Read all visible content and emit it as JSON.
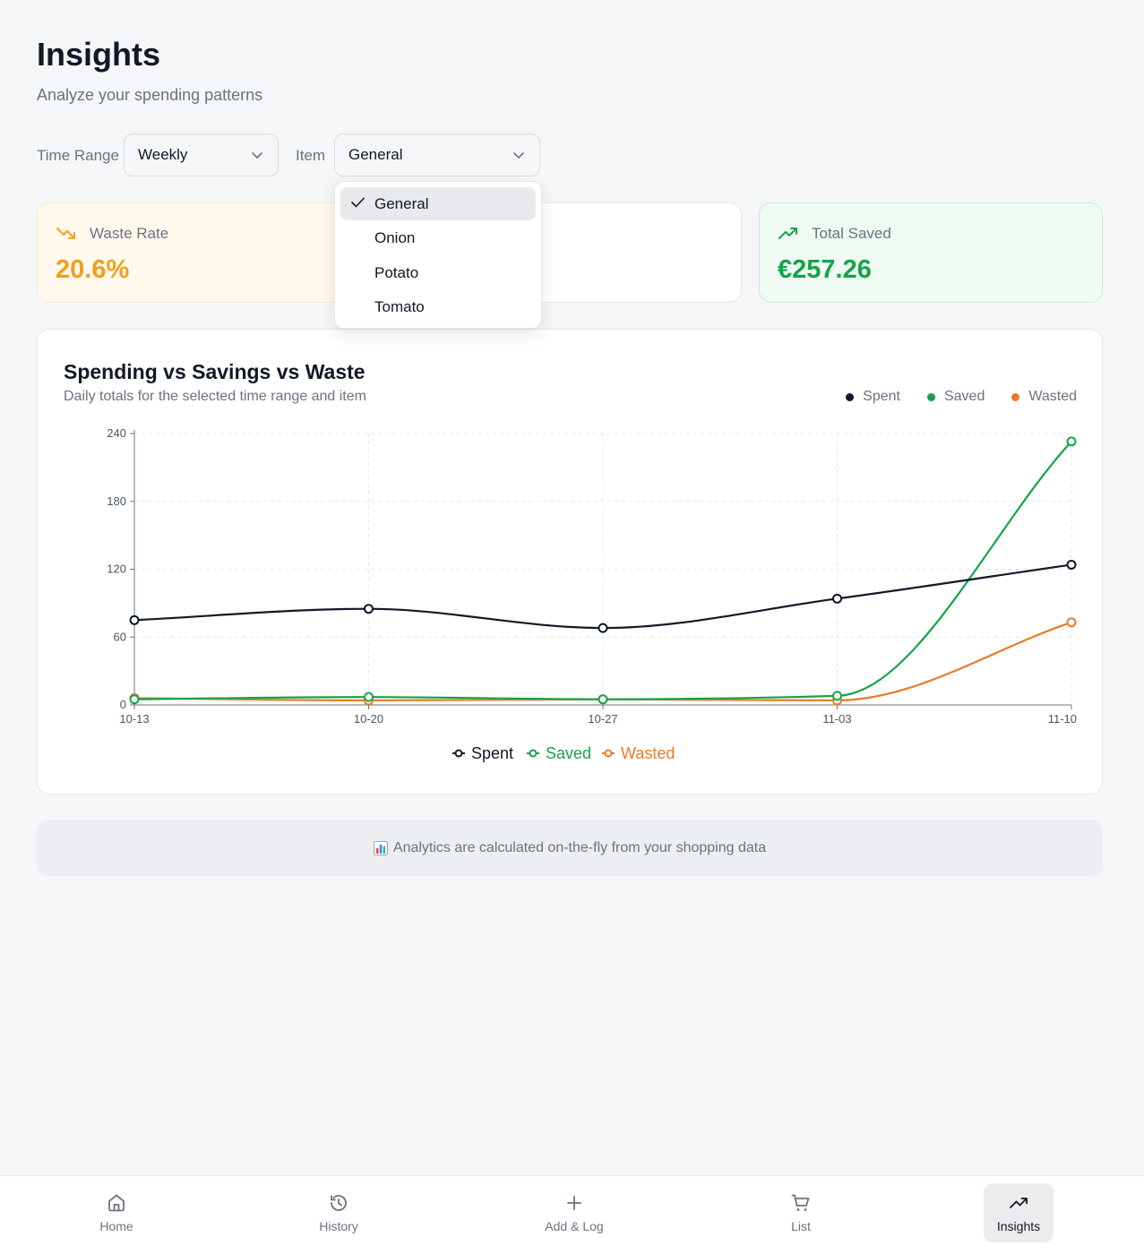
{
  "header": {
    "title": "Insights",
    "subtitle": "Analyze your spending patterns"
  },
  "filters": {
    "time_range_label": "Time Range",
    "time_range_value": "Weekly",
    "item_label": "Item",
    "item_value": "General",
    "item_options": [
      "General",
      "Onion",
      "Potato",
      "Tomato"
    ]
  },
  "cards": {
    "waste_rate": {
      "label": "Waste Rate",
      "value": "20.6%"
    },
    "total_saved": {
      "label": "Total Saved",
      "value": "€257.26"
    }
  },
  "chart": {
    "title": "Spending vs Savings vs Waste",
    "subtitle": "Daily totals for the selected time range and item",
    "legend": [
      "Spent",
      "Saved",
      "Wasted"
    ]
  },
  "chart_data": {
    "type": "line",
    "categories": [
      "10-13",
      "10-20",
      "10-27",
      "11-03",
      "11-10"
    ],
    "series": [
      {
        "name": "Spent",
        "color": "#111827",
        "values": [
          75,
          85,
          68,
          94,
          124
        ]
      },
      {
        "name": "Saved",
        "color": "#16a34a",
        "values": [
          5,
          7,
          5,
          8,
          233
        ]
      },
      {
        "name": "Wasted",
        "color": "#ea7a26",
        "values": [
          6,
          4,
          5,
          4,
          73
        ]
      }
    ],
    "y_ticks": [
      0,
      60,
      120,
      180,
      240
    ],
    "ylim": [
      0,
      240
    ],
    "grid": true,
    "legend": "bottom"
  },
  "info": {
    "text": "Analytics are calculated on-the-fly from your shopping data"
  },
  "nav": {
    "home": "Home",
    "history": "History",
    "add_log": "Add & Log",
    "list": "List",
    "insights": "Insights"
  },
  "colors": {
    "waste_accent": "#f0a018",
    "saved_accent": "#16a34a",
    "spent": "#111827",
    "wasted": "#ea7a26"
  }
}
